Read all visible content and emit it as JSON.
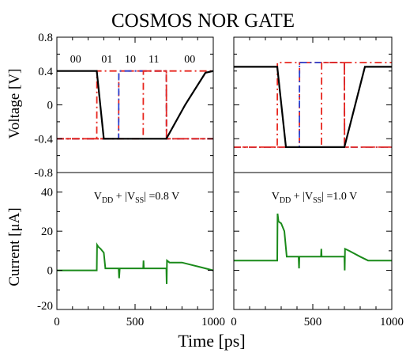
{
  "chart_data": {
    "type": "line",
    "title": "COSMOS NOR GATE",
    "xlabel": "Time [ps]",
    "xlim": [
      0,
      1000
    ],
    "x_ticks": [
      0,
      500,
      1000
    ],
    "x_tick_labels": [
      "0",
      "500",
      "1000"
    ],
    "grid": false,
    "voltage": {
      "ylabel": "Voltage [V]",
      "ylim": [
        -0.8,
        0.8
      ],
      "y_ticks": [
        -0.8,
        -0.4,
        0,
        0.4,
        0.8
      ],
      "y_tick_labels": [
        "-0.8",
        "-0.4",
        "0",
        "0.4",
        "0.8"
      ],
      "input_labels": [
        {
          "text": "00",
          "x": 120
        },
        {
          "text": "01",
          "x": 320
        },
        {
          "text": "10",
          "x": 470
        },
        {
          "text": "11",
          "x": 620
        },
        {
          "text": "00",
          "x": 850
        }
      ]
    },
    "current": {
      "ylabel": "Current [μA]",
      "ylim": [
        -20,
        50
      ],
      "y_ticks": [
        -20,
        0,
        20,
        40
      ],
      "y_tick_labels": [
        "-20",
        "0",
        "20",
        "40"
      ]
    },
    "panels": [
      {
        "supply_label": "V_DD + |V_SS| = 0.8 V",
        "supply_parts": {
          "a": "V",
          "a_sub": "DD",
          "b": " + |V",
          "b_sub": "SS",
          "c": "| =0.8 V"
        },
        "voltage_series": [
          {
            "color": "#e8261e",
            "style": "dash-dot",
            "points": [
              [
                0,
                -0.4
              ],
              [
                255,
                -0.4
              ],
              [
                256,
                0.4
              ],
              [
                1000,
                0.4
              ]
            ]
          },
          {
            "color": "#e8261e",
            "style": "dashed",
            "points": [
              [
                0,
                -0.4
              ],
              [
                395,
                -0.4
              ],
              [
                396,
                0.4
              ],
              [
                700,
                0.4
              ],
              [
                701,
                -0.4
              ],
              [
                1000,
                -0.4
              ]
            ]
          },
          {
            "color": "#2b48d6",
            "style": "dash-dot",
            "points": [
              [
                0,
                -0.4
              ],
              [
                395,
                -0.4
              ],
              [
                396,
                0.4
              ],
              [
                700,
                0.4
              ],
              [
                701,
                -0.4
              ],
              [
                1000,
                -0.4
              ]
            ]
          },
          {
            "color": "#e8261e",
            "style": "dash-dot",
            "points": [
              [
                0,
                -0.4
              ],
              [
                552,
                -0.4
              ],
              [
                553,
                0.4
              ],
              [
                700,
                0.4
              ],
              [
                701,
                -0.4
              ],
              [
                1000,
                -0.4
              ]
            ]
          },
          {
            "color": "#000000",
            "style": "solid",
            "points": [
              [
                0,
                0.4
              ],
              [
                255,
                0.4
              ],
              [
                300,
                -0.4
              ],
              [
                700,
                -0.4
              ],
              [
                820,
                0.0
              ],
              [
                950,
                0.38
              ],
              [
                1000,
                0.4
              ]
            ]
          }
        ],
        "current_series": [
          {
            "color": "#1a8a1a",
            "style": "solid",
            "points": [
              [
                0,
                0
              ],
              [
                255,
                0
              ],
              [
                257,
                13
              ],
              [
                265,
                12
              ],
              [
                280,
                11
              ],
              [
                300,
                9
              ],
              [
                310,
                1
              ],
              [
                395,
                1
              ],
              [
                398,
                -4
              ],
              [
                402,
                1
              ],
              [
                552,
                1
              ],
              [
                554,
                5
              ],
              [
                556,
                1
              ],
              [
                700,
                1
              ],
              [
                702,
                -7
              ],
              [
                704,
                5
              ],
              [
                720,
                4
              ],
              [
                800,
                4
              ],
              [
                850,
                3
              ],
              [
                950,
                1
              ],
              [
                1000,
                0
              ]
            ]
          }
        ]
      },
      {
        "supply_label": "V_DD + |V_SS| = 1.0 V",
        "supply_parts": {
          "a": "V",
          "a_sub": "DD",
          "b": " + |V",
          "b_sub": "SS",
          "c": "| =1.0 V"
        },
        "voltage_series": [
          {
            "color": "#e8261e",
            "style": "dash-dot",
            "points": [
              [
                0,
                -0.5
              ],
              [
                275,
                -0.5
              ],
              [
                276,
                0.5
              ],
              [
                1000,
                0.5
              ]
            ]
          },
          {
            "color": "#e8261e",
            "style": "dashed",
            "points": [
              [
                0,
                -0.5
              ],
              [
                415,
                -0.5
              ],
              [
                416,
                0.5
              ],
              [
                700,
                0.5
              ],
              [
                701,
                -0.5
              ],
              [
                1000,
                -0.5
              ]
            ]
          },
          {
            "color": "#2b48d6",
            "style": "dash-dot",
            "points": [
              [
                0,
                -0.5
              ],
              [
                415,
                -0.5
              ],
              [
                416,
                0.5
              ],
              [
                700,
                0.5
              ],
              [
                701,
                -0.5
              ],
              [
                1000,
                -0.5
              ]
            ]
          },
          {
            "color": "#e8261e",
            "style": "dash-dot",
            "points": [
              [
                0,
                -0.5
              ],
              [
                555,
                -0.5
              ],
              [
                556,
                0.5
              ],
              [
                700,
                0.5
              ],
              [
                701,
                -0.5
              ],
              [
                1000,
                -0.5
              ]
            ]
          },
          {
            "color": "#000000",
            "style": "solid",
            "points": [
              [
                0,
                0.45
              ],
              [
                275,
                0.45
              ],
              [
                330,
                -0.5
              ],
              [
                700,
                -0.5
              ],
              [
                830,
                0.45
              ],
              [
                1000,
                0.45
              ]
            ]
          }
        ],
        "current_series": [
          {
            "color": "#1a8a1a",
            "style": "solid",
            "points": [
              [
                0,
                5
              ],
              [
                275,
                5
              ],
              [
                277,
                29
              ],
              [
                283,
                25
              ],
              [
                300,
                24
              ],
              [
                320,
                20
              ],
              [
                335,
                7
              ],
              [
                410,
                7
              ],
              [
                413,
                1
              ],
              [
                415,
                7
              ],
              [
                552,
                7
              ],
              [
                554,
                11
              ],
              [
                556,
                7
              ],
              [
                700,
                7
              ],
              [
                702,
                0
              ],
              [
                704,
                11
              ],
              [
                730,
                10
              ],
              [
                800,
                7
              ],
              [
                850,
                5
              ],
              [
                1000,
                5
              ]
            ]
          }
        ]
      }
    ]
  }
}
